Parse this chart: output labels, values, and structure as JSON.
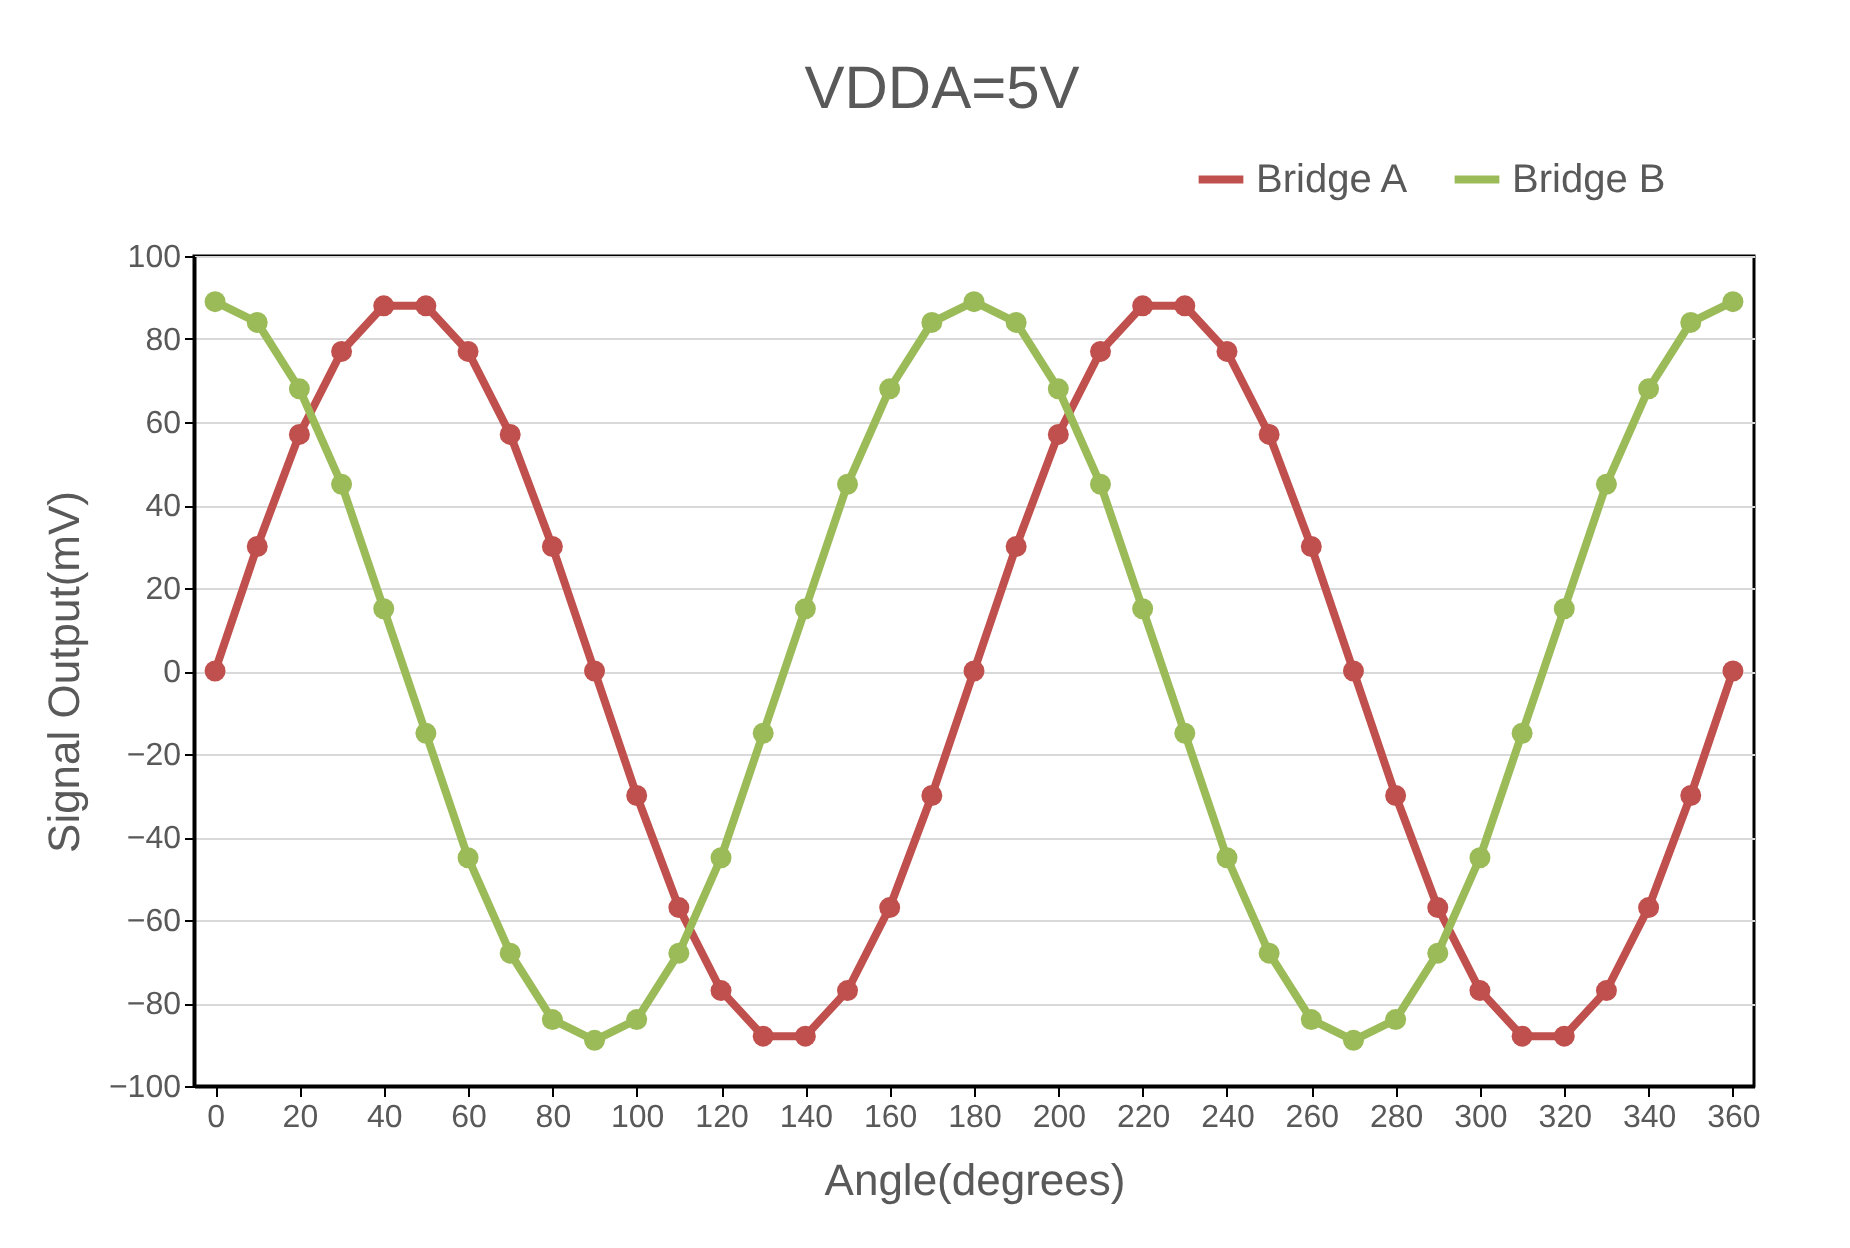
{
  "chart_data": {
    "type": "line",
    "title": "VDDA=5V",
    "xlabel": "Angle(degrees)",
    "ylabel": "Signal Output(mV)",
    "x": [
      0,
      10,
      20,
      30,
      40,
      50,
      60,
      70,
      80,
      90,
      100,
      110,
      120,
      130,
      140,
      150,
      160,
      170,
      180,
      190,
      200,
      210,
      220,
      230,
      240,
      250,
      260,
      270,
      280,
      290,
      300,
      310,
      320,
      330,
      340,
      350,
      360
    ],
    "series": [
      {
        "name": "Bridge A",
        "color": "#c0504d",
        "values": [
          0,
          30,
          57,
          77,
          88,
          88,
          77,
          57,
          30,
          0,
          -30,
          -57,
          -77,
          -88,
          -88,
          -77,
          -57,
          -30,
          0,
          30,
          57,
          77,
          88,
          88,
          77,
          57,
          30,
          0,
          -30,
          -57,
          -77,
          -88,
          -88,
          -77,
          -57,
          -30,
          0
        ]
      },
      {
        "name": "Bridge B",
        "color": "#9bbb59",
        "values": [
          89,
          84,
          68,
          45,
          15,
          -15,
          -45,
          -68,
          -84,
          -89,
          -84,
          -68,
          -45,
          -15,
          15,
          45,
          68,
          84,
          89,
          84,
          68,
          45,
          15,
          -15,
          -45,
          -68,
          -84,
          -89,
          -84,
          -68,
          -45,
          -15,
          15,
          45,
          68,
          84,
          89
        ]
      }
    ],
    "xlim": [
      -5,
      365
    ],
    "xticks": [
      0,
      20,
      40,
      60,
      80,
      100,
      120,
      140,
      160,
      180,
      200,
      220,
      240,
      260,
      280,
      300,
      320,
      340,
      360
    ],
    "ylim": [
      -100,
      100
    ],
    "yticks": [
      -100,
      -80,
      -60,
      -40,
      -20,
      0,
      20,
      40,
      60,
      80,
      100
    ],
    "grid": "y",
    "legend": "top right",
    "marker": "circle",
    "line_style": "solid"
  }
}
